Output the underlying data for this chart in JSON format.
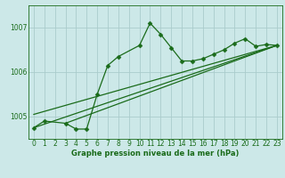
{
  "title": "Graphe pression niveau de la mer (hPa)",
  "bg_color": "#cce8e8",
  "grid_color": "#aacccc",
  "line_color": "#1a6b1a",
  "marker_color": "#1a6b1a",
  "xlim": [
    -0.5,
    23.5
  ],
  "ylim": [
    1004.5,
    1007.5
  ],
  "xticks": [
    0,
    1,
    2,
    3,
    4,
    5,
    6,
    7,
    8,
    9,
    10,
    11,
    12,
    13,
    14,
    15,
    16,
    17,
    18,
    19,
    20,
    21,
    22,
    23
  ],
  "yticks": [
    1005,
    1006,
    1007
  ],
  "series_main": {
    "x": [
      0,
      1,
      3,
      4,
      5,
      6,
      7,
      8,
      10,
      11,
      12,
      13,
      14,
      15,
      16,
      17,
      18,
      19,
      20,
      21,
      22,
      23
    ],
    "y": [
      1004.75,
      1004.9,
      1004.85,
      1004.72,
      1004.72,
      1005.5,
      1006.15,
      1006.35,
      1006.6,
      1007.1,
      1006.85,
      1006.55,
      1006.25,
      1006.25,
      1006.3,
      1006.4,
      1006.5,
      1006.65,
      1006.75,
      1006.58,
      1006.62,
      1006.6
    ]
  },
  "series_diag1": {
    "x": [
      0,
      23
    ],
    "y": [
      1004.75,
      1006.6
    ]
  },
  "series_diag2": {
    "x": [
      0,
      23
    ],
    "y": [
      1005.05,
      1006.6
    ]
  },
  "series_diag3": {
    "x": [
      3,
      23
    ],
    "y": [
      1004.85,
      1006.6
    ]
  }
}
